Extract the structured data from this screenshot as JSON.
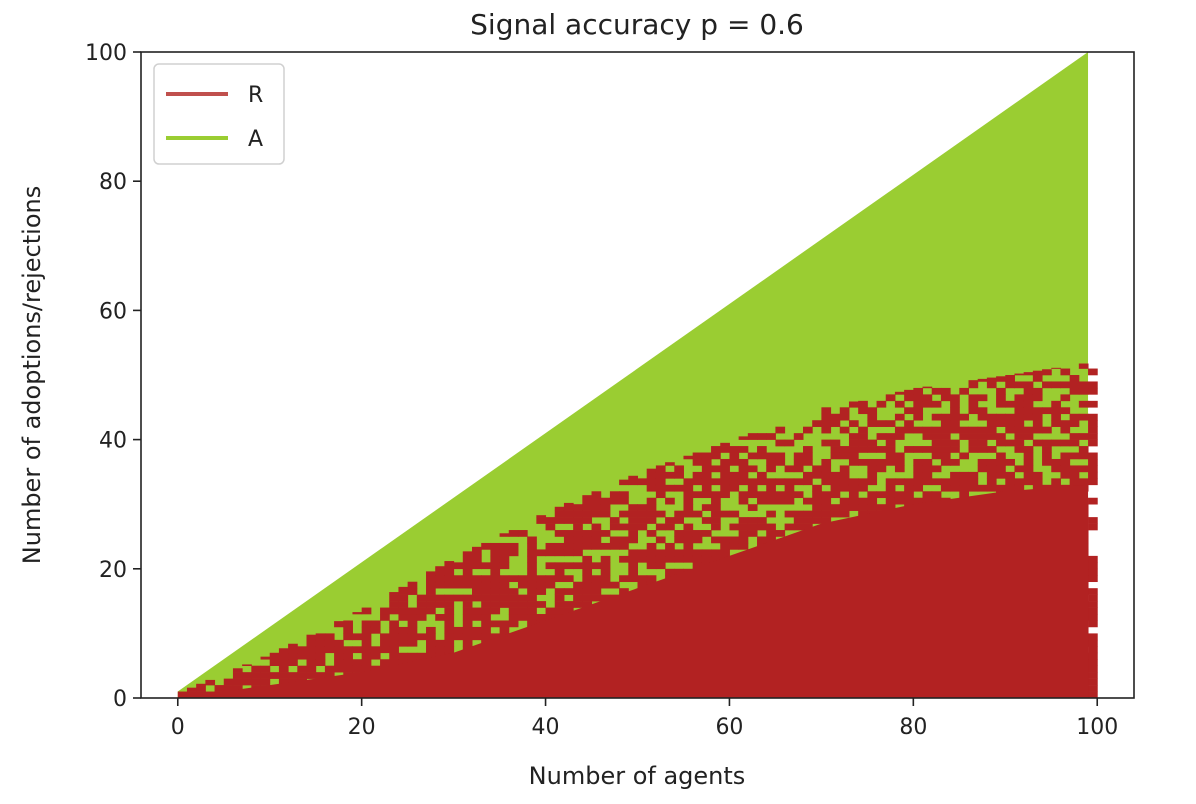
{
  "chart_data": {
    "type": "area",
    "title": "Signal accuracy p =  0.6",
    "xlabel": "Number of agents",
    "ylabel": "Number of adoptions/rejections",
    "xlim": [
      -4,
      104
    ],
    "ylim": [
      0,
      100
    ],
    "xticks": [
      0,
      20,
      40,
      60,
      80,
      100
    ],
    "yticks": [
      0,
      20,
      40,
      60,
      80,
      100
    ],
    "grid": false,
    "legend_placement": "top-left",
    "colors": {
      "R": "#b22222",
      "A": "#9acd32"
    },
    "series": [
      {
        "name": "R",
        "description_x": "Number of agents",
        "x": [
          0,
          10,
          20,
          30,
          40,
          50,
          60,
          70,
          80,
          90,
          99
        ],
        "upper_band": [
          1,
          7,
          14,
          22,
          29,
          35,
          40,
          45,
          48,
          50,
          52
        ],
        "solid_region_top": [
          0,
          2,
          4,
          7,
          12,
          17,
          22,
          27,
          30,
          32,
          33
        ]
      },
      {
        "name": "A",
        "x": [
          0,
          99
        ],
        "upper_bound": [
          1,
          100
        ]
      }
    ]
  }
}
